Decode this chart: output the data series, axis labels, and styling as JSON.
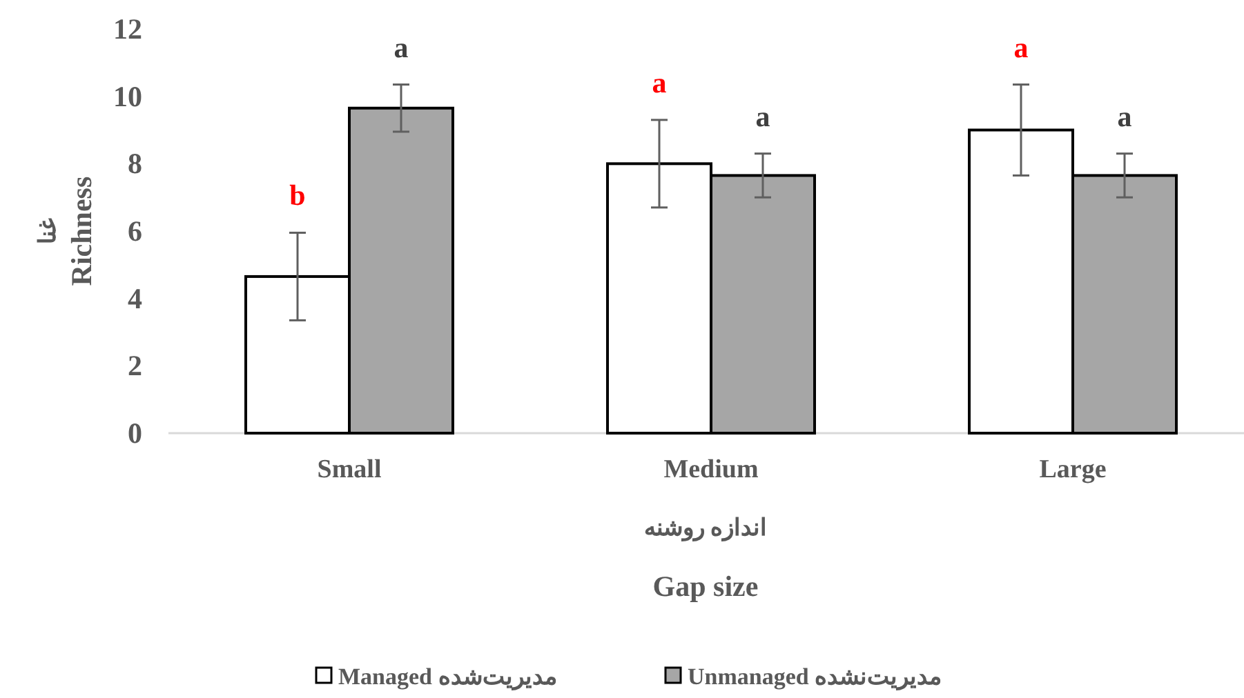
{
  "chart_data": {
    "type": "bar",
    "categories": [
      "Small",
      "Medium",
      "Large"
    ],
    "series": [
      {
        "name": "Managed مدیریت‌شده",
        "color": "#ffffff",
        "values": [
          4.65,
          8.0,
          9.0
        ],
        "errors": [
          1.3,
          1.3,
          1.35
        ]
      },
      {
        "name": "Unmanaged مدیریت‌نشده",
        "color": "#a6a6a6",
        "values": [
          9.65,
          7.65,
          7.65
        ],
        "errors": [
          0.7,
          0.65,
          0.65
        ]
      }
    ],
    "ylabel": "غنا\nRichness",
    "xlabel": "اندازه روشنه\nGap size",
    "ylim": [
      0,
      12
    ],
    "yticks": [
      0,
      2,
      4,
      6,
      8,
      10,
      12
    ],
    "grid": false,
    "legend": "bottom",
    "annotations": [
      "b",
      "a",
      "a",
      "a",
      "a",
      "a"
    ]
  }
}
